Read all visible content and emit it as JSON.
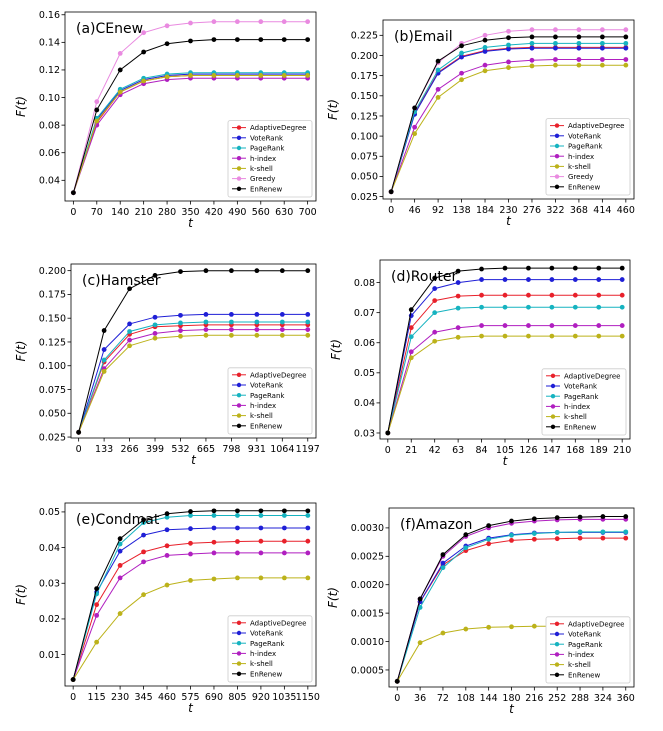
{
  "colors": {
    "AdaptiveDegree": "#e8212b",
    "VoteRank": "#1f1fd6",
    "PageRank": "#16b3c0",
    "h-index": "#b01fc0",
    "k-shell": "#bcb21a",
    "Greedy": "#e98ae0",
    "EnRenew": "#000000"
  },
  "chart_data": [
    {
      "type": "line",
      "title": "(a)CEnew",
      "xlabel": "t",
      "ylabel": "F(t)",
      "xticks": [
        0,
        70,
        140,
        210,
        280,
        350,
        420,
        490,
        560,
        630,
        700
      ],
      "yticks": [
        0.04,
        0.06,
        0.08,
        0.1,
        0.12,
        0.14,
        0.16
      ],
      "ytick_labels": [
        "0.04",
        "0.06",
        "0.08",
        "0.10",
        "0.12",
        "0.14",
        "0.16"
      ],
      "xlim": [
        -25,
        725
      ],
      "ylim": [
        0.025,
        0.162
      ],
      "legend": "lower-right",
      "x": [
        0,
        70,
        140,
        210,
        280,
        350,
        420,
        490,
        560,
        630,
        700
      ],
      "series": [
        {
          "name": "AdaptiveDegree",
          "values": [
            0.031,
            0.082,
            0.104,
            0.112,
            0.115,
            0.116,
            0.116,
            0.116,
            0.116,
            0.116,
            0.116
          ]
        },
        {
          "name": "VoteRank",
          "values": [
            0.031,
            0.084,
            0.105,
            0.113,
            0.116,
            0.117,
            0.117,
            0.117,
            0.117,
            0.117,
            0.117
          ]
        },
        {
          "name": "PageRank",
          "values": [
            0.031,
            0.085,
            0.106,
            0.114,
            0.117,
            0.118,
            0.118,
            0.118,
            0.118,
            0.118,
            0.118
          ]
        },
        {
          "name": "h-index",
          "values": [
            0.031,
            0.08,
            0.102,
            0.11,
            0.113,
            0.114,
            0.114,
            0.114,
            0.114,
            0.114,
            0.114
          ]
        },
        {
          "name": "k-shell",
          "values": [
            0.031,
            0.083,
            0.104,
            0.112,
            0.115,
            0.116,
            0.116,
            0.116,
            0.116,
            0.116,
            0.116
          ]
        },
        {
          "name": "Greedy",
          "values": [
            0.031,
            0.097,
            0.132,
            0.147,
            0.152,
            0.154,
            0.155,
            0.155,
            0.155,
            0.155,
            0.155
          ]
        },
        {
          "name": "EnRenew",
          "values": [
            0.031,
            0.091,
            0.12,
            0.133,
            0.139,
            0.141,
            0.142,
            0.142,
            0.142,
            0.142,
            0.142
          ]
        }
      ]
    },
    {
      "type": "line",
      "title": "(b)Email",
      "xlabel": "t",
      "ylabel": "F(t)",
      "xticks": [
        0,
        46,
        92,
        138,
        184,
        230,
        276,
        322,
        368,
        414,
        460
      ],
      "yticks": [
        0.025,
        0.05,
        0.075,
        0.1,
        0.125,
        0.15,
        0.175,
        0.2,
        0.225
      ],
      "ytick_labels": [
        "0.025",
        "0.050",
        "0.075",
        "0.100",
        "0.125",
        "0.150",
        "0.175",
        "0.200",
        "0.225"
      ],
      "xlim": [
        -16,
        476
      ],
      "ylim": [
        0.022,
        0.244
      ],
      "legend": "lower-right",
      "x": [
        0,
        46,
        92,
        138,
        184,
        230,
        276,
        322,
        368,
        414,
        460
      ],
      "series": [
        {
          "name": "AdaptiveDegree",
          "values": [
            0.031,
            0.128,
            0.179,
            0.199,
            0.206,
            0.209,
            0.21,
            0.21,
            0.21,
            0.21,
            0.21
          ]
        },
        {
          "name": "VoteRank",
          "values": [
            0.031,
            0.127,
            0.178,
            0.198,
            0.205,
            0.208,
            0.209,
            0.209,
            0.209,
            0.209,
            0.209
          ]
        },
        {
          "name": "PageRank",
          "values": [
            0.031,
            0.13,
            0.182,
            0.203,
            0.21,
            0.213,
            0.215,
            0.215,
            0.215,
            0.215,
            0.215
          ]
        },
        {
          "name": "h-index",
          "values": [
            0.031,
            0.111,
            0.158,
            0.178,
            0.188,
            0.192,
            0.194,
            0.195,
            0.195,
            0.195,
            0.195
          ]
        },
        {
          "name": "k-shell",
          "values": [
            0.031,
            0.103,
            0.148,
            0.17,
            0.181,
            0.185,
            0.187,
            0.188,
            0.188,
            0.188,
            0.188
          ]
        },
        {
          "name": "Greedy",
          "values": [
            0.031,
            0.135,
            0.191,
            0.215,
            0.225,
            0.23,
            0.232,
            0.232,
            0.232,
            0.232,
            0.232
          ]
        },
        {
          "name": "EnRenew",
          "values": [
            0.031,
            0.135,
            0.193,
            0.212,
            0.219,
            0.222,
            0.223,
            0.223,
            0.223,
            0.223,
            0.223
          ]
        }
      ]
    },
    {
      "type": "line",
      "title": "(c)Hamster",
      "xlabel": "t",
      "ylabel": "F(t)",
      "xticks": [
        0,
        133,
        266,
        399,
        532,
        665,
        798,
        931,
        1064,
        1197
      ],
      "xtick_labels": [
        "0",
        "133",
        "266",
        "399",
        "532",
        "665",
        "798",
        "931",
        "1064",
        "1197"
      ],
      "yticks": [
        0.025,
        0.05,
        0.075,
        0.1,
        0.125,
        0.15,
        0.175,
        0.2
      ],
      "ytick_labels": [
        "0.025",
        "0.050",
        "0.075",
        "0.100",
        "0.125",
        "0.150",
        "0.175",
        "0.200"
      ],
      "xlim": [
        -40,
        1240
      ],
      "ylim": [
        0.024,
        0.207
      ],
      "legend": "lower-right",
      "x": [
        0,
        133,
        266,
        399,
        532,
        665,
        798,
        931,
        1064,
        1197
      ],
      "series": [
        {
          "name": "AdaptiveDegree",
          "values": [
            0.03,
            0.104,
            0.133,
            0.141,
            0.142,
            0.143,
            0.143,
            0.143,
            0.143,
            0.143
          ]
        },
        {
          "name": "VoteRank",
          "values": [
            0.03,
            0.117,
            0.144,
            0.151,
            0.153,
            0.154,
            0.154,
            0.154,
            0.154,
            0.154
          ]
        },
        {
          "name": "PageRank",
          "values": [
            0.03,
            0.106,
            0.136,
            0.143,
            0.145,
            0.146,
            0.146,
            0.146,
            0.146,
            0.146
          ]
        },
        {
          "name": "h-index",
          "values": [
            0.03,
            0.097,
            0.127,
            0.134,
            0.137,
            0.138,
            0.138,
            0.138,
            0.138,
            0.138
          ]
        },
        {
          "name": "k-shell",
          "values": [
            0.03,
            0.094,
            0.121,
            0.129,
            0.131,
            0.132,
            0.132,
            0.132,
            0.132,
            0.132
          ]
        },
        {
          "name": "EnRenew",
          "values": [
            0.03,
            0.137,
            0.181,
            0.195,
            0.199,
            0.2,
            0.2,
            0.2,
            0.2,
            0.2
          ]
        }
      ]
    },
    {
      "type": "line",
      "title": "(d)Router",
      "xlabel": "t",
      "ylabel": "F(t)",
      "xticks": [
        0,
        21,
        42,
        63,
        84,
        105,
        126,
        147,
        168,
        189,
        210
      ],
      "yticks": [
        0.03,
        0.04,
        0.05,
        0.06,
        0.07,
        0.08
      ],
      "ytick_labels": [
        "0.03",
        "0.04",
        "0.05",
        "0.06",
        "0.07",
        "0.08"
      ],
      "xlim": [
        -7,
        217
      ],
      "ylim": [
        0.028,
        0.0875
      ],
      "legend": "lower-right",
      "x": [
        0,
        21,
        42,
        63,
        84,
        105,
        126,
        147,
        168,
        189,
        210
      ],
      "series": [
        {
          "name": "AdaptiveDegree",
          "values": [
            0.03,
            0.065,
            0.074,
            0.0755,
            0.0758,
            0.0758,
            0.0758,
            0.0758,
            0.0758,
            0.0758,
            0.0758
          ]
        },
        {
          "name": "VoteRank",
          "values": [
            0.03,
            0.069,
            0.078,
            0.08,
            0.081,
            0.081,
            0.081,
            0.081,
            0.081,
            0.081,
            0.081
          ]
        },
        {
          "name": "PageRank",
          "values": [
            0.03,
            0.062,
            0.07,
            0.0715,
            0.0718,
            0.0718,
            0.0718,
            0.0718,
            0.0718,
            0.0718,
            0.0718
          ]
        },
        {
          "name": "h-index",
          "values": [
            0.03,
            0.057,
            0.0635,
            0.065,
            0.0657,
            0.0657,
            0.0657,
            0.0657,
            0.0657,
            0.0657,
            0.0657
          ]
        },
        {
          "name": "k-shell",
          "values": [
            0.03,
            0.055,
            0.0605,
            0.0618,
            0.0622,
            0.0622,
            0.0622,
            0.0622,
            0.0622,
            0.0622,
            0.0622
          ]
        },
        {
          "name": "EnRenew",
          "values": [
            0.03,
            0.071,
            0.0815,
            0.0838,
            0.0845,
            0.0848,
            0.0848,
            0.0848,
            0.0848,
            0.0848,
            0.0848
          ]
        }
      ]
    },
    {
      "type": "line",
      "title": "(e)Condmat",
      "xlabel": "t",
      "ylabel": "F(t)",
      "xticks": [
        0,
        115,
        230,
        345,
        460,
        575,
        690,
        805,
        920,
        1035,
        1150
      ],
      "yticks": [
        0.01,
        0.02,
        0.03,
        0.04,
        0.05
      ],
      "ytick_labels": [
        "0.01",
        "0.02",
        "0.03",
        "0.04",
        "0.05"
      ],
      "xlim": [
        -40,
        1190
      ],
      "ylim": [
        0.0012,
        0.0525
      ],
      "legend": "lower-right",
      "x": [
        0,
        115,
        230,
        345,
        460,
        575,
        690,
        805,
        920,
        1035,
        1150
      ],
      "series": [
        {
          "name": "AdaptiveDegree",
          "values": [
            0.003,
            0.024,
            0.035,
            0.0388,
            0.0405,
            0.0412,
            0.0415,
            0.0417,
            0.0418,
            0.0418,
            0.0418
          ]
        },
        {
          "name": "VoteRank",
          "values": [
            0.003,
            0.0275,
            0.039,
            0.0435,
            0.045,
            0.0453,
            0.0455,
            0.0455,
            0.0455,
            0.0455,
            0.0455
          ]
        },
        {
          "name": "PageRank",
          "values": [
            0.003,
            0.027,
            0.041,
            0.047,
            0.0485,
            0.049,
            0.049,
            0.049,
            0.049,
            0.049,
            0.049
          ]
        },
        {
          "name": "h-index",
          "values": [
            0.003,
            0.021,
            0.0315,
            0.036,
            0.0378,
            0.0382,
            0.0385,
            0.0385,
            0.0385,
            0.0385,
            0.0385
          ]
        },
        {
          "name": "k-shell",
          "values": [
            0.003,
            0.0135,
            0.0215,
            0.0268,
            0.0295,
            0.0308,
            0.0312,
            0.0315,
            0.0315,
            0.0315,
            0.0315
          ]
        },
        {
          "name": "EnRenew",
          "values": [
            0.003,
            0.0285,
            0.0425,
            0.0478,
            0.0495,
            0.0501,
            0.0503,
            0.0503,
            0.0503,
            0.0503,
            0.0503
          ]
        }
      ]
    },
    {
      "type": "line",
      "title": "(f)Amazon",
      "xlabel": "t",
      "ylabel": "F(t)",
      "xticks": [
        0,
        36,
        72,
        108,
        144,
        180,
        216,
        252,
        288,
        324,
        360
      ],
      "yticks": [
        0.0005,
        0.001,
        0.0015,
        0.002,
        0.0025,
        0.003
      ],
      "ytick_labels": [
        "0.0005",
        "0.0010",
        "0.0015",
        "0.0020",
        "0.0025",
        "0.0030"
      ],
      "xlim": [
        -13,
        373
      ],
      "ylim": [
        0.0002,
        0.00335
      ],
      "legend": "lower-right",
      "x": [
        0,
        36,
        72,
        108,
        144,
        180,
        216,
        252,
        288,
        324,
        360
      ],
      "series": [
        {
          "name": "AdaptiveDegree",
          "values": [
            0.0003,
            0.0017,
            0.00235,
            0.0026,
            0.00272,
            0.00278,
            0.0028,
            0.00281,
            0.00282,
            0.00282,
            0.00282
          ]
        },
        {
          "name": "VoteRank",
          "values": [
            0.0003,
            0.0017,
            0.00238,
            0.00268,
            0.00282,
            0.00288,
            0.00291,
            0.00292,
            0.00292,
            0.00292,
            0.00292
          ]
        },
        {
          "name": "PageRank",
          "values": [
            0.0003,
            0.0016,
            0.0023,
            0.00265,
            0.0028,
            0.00287,
            0.0029,
            0.00292,
            0.00293,
            0.00293,
            0.00293
          ]
        },
        {
          "name": "h-index",
          "values": [
            0.0003,
            0.00175,
            0.0025,
            0.00285,
            0.003,
            0.00308,
            0.00312,
            0.00314,
            0.00315,
            0.00315,
            0.00315
          ]
        },
        {
          "name": "k-shell",
          "values": [
            0.0003,
            0.00098,
            0.00115,
            0.00122,
            0.00125,
            0.00126,
            0.00127,
            0.00127,
            0.00127,
            0.00127,
            0.00127
          ]
        },
        {
          "name": "EnRenew",
          "values": [
            0.0003,
            0.00175,
            0.00253,
            0.00288,
            0.00304,
            0.00312,
            0.00316,
            0.00318,
            0.00319,
            0.0032,
            0.0032
          ]
        }
      ]
    }
  ]
}
